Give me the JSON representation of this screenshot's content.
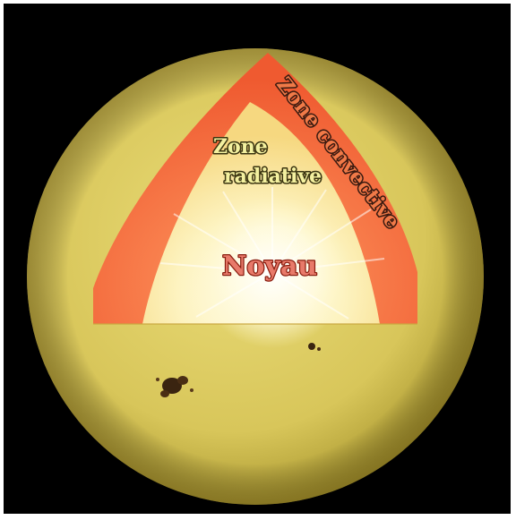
{
  "labels": {
    "convective": "Zone convective",
    "radiative_line1": "Zone",
    "radiative_line2": "radiative",
    "core": "Noyau"
  },
  "colors": {
    "background": "#000000",
    "photosphere": "#d9c85a",
    "convective_zone": "#f26a3c",
    "radiative_zone": "#fbe9a6",
    "core_glow": "#fffde8",
    "sunspot": "#3a2410",
    "core_text": "#e87a6a",
    "core_text_outline": "#8a1e10",
    "radiative_text": "#f4f1a0",
    "radiative_text_outline": "#3a3410",
    "convective_text": "#f07a48",
    "convective_text_outline": "#3a1a10"
  }
}
